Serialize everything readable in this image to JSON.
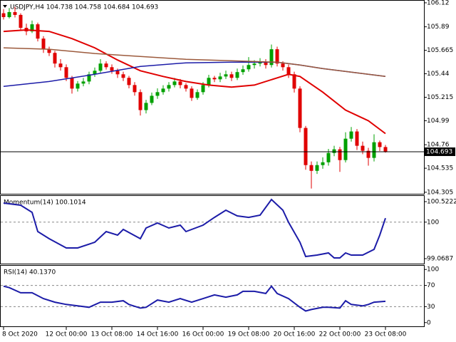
{
  "chart_data": [
    {
      "type": "candlestick",
      "title": "USDJPY,H4  104.738 104.758 104.684 104.693",
      "up_color": "#00a000",
      "down_color": "#e00000",
      "open": [
        106.02,
        105.983,
        106.031,
        106.004,
        105.88,
        105.846,
        105.914,
        105.777,
        105.675,
        105.64,
        105.538,
        105.503,
        105.401,
        105.298,
        105.346,
        105.366,
        105.435,
        105.469,
        105.538,
        105.503,
        105.469,
        105.435,
        105.401,
        105.332,
        105.264,
        105.092,
        105.161,
        105.229,
        105.264,
        105.298,
        105.332,
        105.366,
        105.332,
        105.298,
        105.209,
        105.264,
        105.332,
        105.401,
        105.387,
        105.414,
        105.435,
        105.401,
        105.456,
        105.483,
        105.524,
        105.538,
        105.551,
        105.524,
        105.675,
        105.538,
        105.503,
        105.435,
        105.298,
        104.921,
        104.565,
        104.51,
        104.565,
        104.592,
        104.681,
        104.716,
        104.613,
        104.818,
        104.887,
        104.75,
        104.702,
        104.634,
        104.784,
        104.738
      ],
      "high": [
        106.06,
        106.07,
        106.08,
        106.02,
        105.92,
        105.95,
        105.93,
        105.8,
        105.7,
        105.66,
        105.58,
        105.53,
        105.42,
        105.37,
        105.4,
        105.46,
        105.5,
        105.58,
        105.56,
        105.53,
        105.49,
        105.46,
        105.42,
        105.36,
        105.29,
        105.19,
        105.26,
        105.3,
        105.33,
        105.36,
        105.4,
        105.39,
        105.35,
        105.32,
        105.29,
        105.36,
        105.43,
        105.42,
        105.45,
        105.47,
        105.46,
        105.49,
        105.52,
        105.6,
        105.57,
        105.59,
        105.58,
        105.72,
        105.7,
        105.56,
        105.53,
        105.46,
        105.32,
        104.94,
        104.6,
        104.6,
        104.64,
        104.72,
        104.75,
        104.74,
        104.88,
        104.93,
        104.91,
        104.79,
        104.73,
        104.86,
        104.8,
        104.758
      ],
      "low": [
        105.96,
        105.97,
        105.98,
        105.85,
        105.81,
        105.83,
        105.75,
        105.64,
        105.61,
        105.5,
        105.47,
        105.37,
        105.25,
        105.27,
        105.32,
        105.34,
        105.41,
        105.45,
        105.48,
        105.44,
        105.4,
        105.37,
        105.3,
        105.23,
        105.04,
        105.06,
        105.14,
        105.2,
        105.24,
        105.27,
        105.31,
        105.3,
        105.27,
        105.18,
        105.19,
        105.24,
        105.31,
        105.36,
        105.36,
        105.39,
        105.37,
        105.38,
        105.43,
        105.46,
        105.49,
        105.51,
        105.49,
        105.5,
        105.51,
        105.47,
        105.4,
        105.26,
        104.88,
        104.52,
        104.34,
        104.48,
        104.53,
        104.56,
        104.65,
        104.5,
        104.59,
        104.79,
        104.71,
        104.67,
        104.56,
        104.6,
        104.7,
        104.684
      ],
      "close": [
        105.983,
        106.031,
        106.004,
        105.88,
        105.846,
        105.914,
        105.777,
        105.675,
        105.64,
        105.538,
        105.503,
        105.401,
        105.298,
        105.346,
        105.366,
        105.435,
        105.469,
        105.538,
        105.503,
        105.469,
        105.435,
        105.401,
        105.332,
        105.264,
        105.092,
        105.161,
        105.229,
        105.264,
        105.298,
        105.332,
        105.366,
        105.332,
        105.298,
        105.209,
        105.264,
        105.332,
        105.401,
        105.387,
        105.414,
        105.435,
        105.401,
        105.456,
        105.483,
        105.524,
        105.538,
        105.551,
        105.524,
        105.675,
        105.538,
        105.503,
        105.435,
        105.298,
        104.921,
        104.565,
        104.51,
        104.565,
        104.592,
        104.681,
        104.716,
        104.613,
        104.818,
        104.887,
        104.75,
        104.702,
        104.634,
        104.784,
        104.738,
        104.693
      ],
      "series": [
        {
          "color": "#e00000",
          "x": [
            0,
            4,
            8,
            12,
            16,
            20,
            24,
            28,
            32,
            36,
            40,
            44,
            48,
            50,
            52,
            56,
            60,
            64,
            67
          ],
          "values": [
            105.846,
            105.86,
            105.846,
            105.777,
            105.689,
            105.572,
            105.469,
            105.414,
            105.366,
            105.332,
            105.312,
            105.332,
            105.401,
            105.435,
            105.414,
            105.264,
            105.092,
            104.99,
            104.867
          ]
        },
        {
          "color": "#1c1ca8",
          "x": [
            0,
            8,
            16,
            24,
            32,
            40,
            48,
            52,
            56,
            60,
            64,
            67
          ],
          "values": [
            105.319,
            105.366,
            105.435,
            105.51,
            105.545,
            105.551,
            105.551,
            105.524,
            105.49,
            105.462,
            105.435,
            105.414
          ]
        },
        {
          "color": "#9c5a3c",
          "x": [
            0,
            8,
            16,
            24,
            32,
            40,
            48,
            52,
            56,
            60,
            64,
            67
          ],
          "values": [
            105.689,
            105.675,
            105.634,
            105.606,
            105.579,
            105.565,
            105.551,
            105.524,
            105.49,
            105.462,
            105.435,
            105.414
          ]
        }
      ],
      "xlim": [
        -0.625,
        73.75
      ],
      "ylim": [
        104.29,
        106.14
      ],
      "yticks": [
        106.12,
        105.89,
        105.665,
        105.44,
        105.215,
        104.99,
        104.76,
        104.535,
        104.305
      ],
      "xticks": [
        {
          "value": 0,
          "label": "8 Oct 2020"
        },
        {
          "value": 11,
          "label": "12 Oct 00:00"
        },
        {
          "value": 19,
          "label": "13 Oct 08:00"
        },
        {
          "value": 27,
          "label": "14 Oct 16:00"
        },
        {
          "value": 35,
          "label": "16 Oct 00:00"
        },
        {
          "value": 43,
          "label": "19 Oct 08:00"
        },
        {
          "value": 51,
          "label": "20 Oct 16:00"
        },
        {
          "value": 59,
          "label": "22 Oct 00:00"
        },
        {
          "value": 67,
          "label": "23 Oct 08:00"
        }
      ]
    },
    {
      "type": "line",
      "title": "Momentum(14) 100.1014",
      "color": "#1c1ca8",
      "x": [
        0,
        3,
        5,
        6,
        8,
        11,
        13,
        16,
        18,
        20,
        21,
        24,
        25,
        27,
        29,
        31,
        32,
        35,
        37,
        39,
        41,
        43,
        45,
        47,
        49,
        50,
        52,
        53,
        55,
        57,
        58,
        59,
        60,
        61,
        63,
        65,
        66,
        67
      ],
      "values": [
        100.486,
        100.431,
        100.25,
        99.76,
        99.578,
        99.342,
        99.342,
        99.487,
        99.76,
        99.668,
        99.814,
        99.578,
        99.85,
        99.977,
        99.85,
        99.923,
        99.76,
        99.923,
        100.122,
        100.304,
        100.159,
        100.122,
        100.177,
        100.577,
        100.304,
        99.995,
        99.487,
        99.123,
        99.16,
        99.214,
        99.087,
        99.087,
        99.214,
        99.16,
        99.16,
        99.305,
        99.668,
        100.1014
      ],
      "xlim": [
        -0.625,
        73.75
      ],
      "ylim": [
        98.942,
        100.668
      ],
      "yticks": [
        100.5222,
        100,
        99.0687
      ],
      "levels": [
        100
      ]
    },
    {
      "type": "line",
      "title": "RSI(14) 40.1370",
      "color": "#1c1ca8",
      "x": [
        0,
        1,
        3,
        5,
        7,
        9,
        11,
        13,
        15,
        17,
        19,
        21,
        22,
        24,
        25,
        26,
        27,
        29,
        31,
        33,
        35,
        37,
        39,
        41,
        42,
        44,
        46,
        47,
        48,
        50,
        52,
        53,
        54,
        56,
        57,
        59,
        60,
        61,
        63,
        64,
        65,
        67
      ],
      "values": [
        68.5,
        65.8,
        56.2,
        56.2,
        45.2,
        38.4,
        34.2,
        31.5,
        28.8,
        38.4,
        38.4,
        41.1,
        34.2,
        27.4,
        28.8,
        35.6,
        42.5,
        38.4,
        45.2,
        38.4,
        45.2,
        52.1,
        47.9,
        52.1,
        58.9,
        58.9,
        54.8,
        68.5,
        54.8,
        45.2,
        28.8,
        21.9,
        24.7,
        28.8,
        28.8,
        27.4,
        41.1,
        34.2,
        31.5,
        34.2,
        38.4,
        40.137
      ],
      "xlim": [
        -0.625,
        73.75
      ],
      "ylim": [
        -7,
        107
      ],
      "yticks": [
        100,
        70,
        30,
        0
      ],
      "levels": [
        70,
        30
      ]
    }
  ]
}
